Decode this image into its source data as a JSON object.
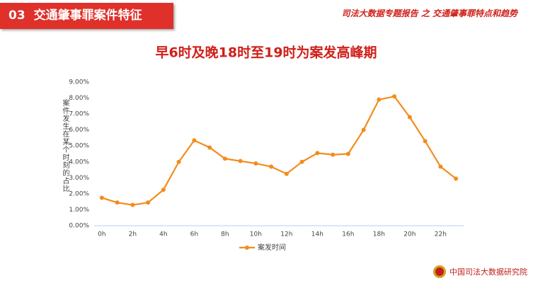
{
  "header": {
    "section": "03",
    "title": "交通肇事罪案件特征",
    "report": "司法大数据专题报告 之 交通肇事罪特点和趋势"
  },
  "footer": {
    "org": "中国司法大数据研究院"
  },
  "chart_data": {
    "type": "line",
    "title": "早6时及晚18时至19时为案发高峰期",
    "y_label": "案件发生在某个时刻的占比",
    "categories": [
      "0h",
      null,
      "2h",
      null,
      "4h",
      null,
      "6h",
      null,
      "8h",
      null,
      "10h",
      null,
      "12h",
      null,
      "14h",
      null,
      "16h",
      null,
      "18h",
      null,
      "20h",
      null,
      "22h",
      null
    ],
    "series": [
      {
        "name": "案发时间",
        "color": "#f28c1e",
        "values": [
          1.75,
          1.45,
          1.3,
          1.45,
          2.25,
          4.0,
          5.35,
          4.9,
          4.2,
          4.05,
          3.9,
          3.7,
          3.25,
          4.0,
          4.55,
          4.45,
          4.5,
          6.0,
          7.9,
          8.1,
          6.8,
          5.3,
          3.7,
          2.95
        ]
      }
    ],
    "ylim": [
      0,
      9
    ],
    "yticks": [
      {
        "value": 0,
        "label": "0.00%"
      },
      {
        "value": 1,
        "label": "1.00%"
      },
      {
        "value": 2,
        "label": "2.00%"
      },
      {
        "value": 3,
        "label": "3.00%"
      },
      {
        "value": 4,
        "label": "4.00%"
      },
      {
        "value": 5,
        "label": "5.00%"
      },
      {
        "value": 6,
        "label": "6.00%"
      },
      {
        "value": 7,
        "label": "7.00%"
      },
      {
        "value": 8,
        "label": "8.00%"
      },
      {
        "value": 9,
        "label": "9.00%"
      }
    ],
    "grid": false,
    "legend": "bottom"
  }
}
